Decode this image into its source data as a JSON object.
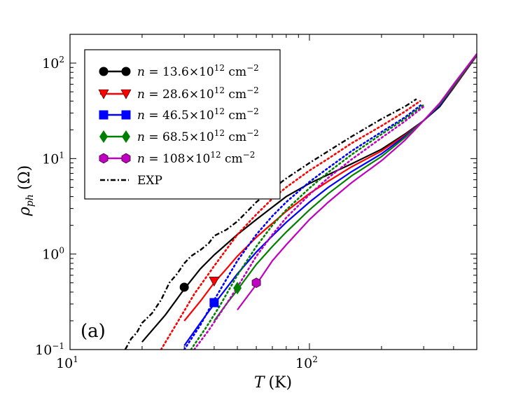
{
  "chart_data": {
    "type": "line",
    "title": "",
    "panel_label": "(a)",
    "xscale": "log",
    "yscale": "log",
    "xlim": [
      10,
      500
    ],
    "ylim": [
      0.1,
      200
    ],
    "xlabel_var": "T",
    "xlabel_unit": "(K)",
    "ylabel_var": "ρ",
    "ylabel_sub": "ph",
    "ylabel_unit": "(Ω)",
    "x_ticks": [
      {
        "value": 10,
        "base": "10",
        "exp": "1"
      },
      {
        "value": 100,
        "base": "10",
        "exp": "2"
      }
    ],
    "y_ticks": [
      {
        "value": 0.1,
        "base": "10",
        "exp": "−1"
      },
      {
        "value": 1,
        "base": "10",
        "exp": "0"
      },
      {
        "value": 10,
        "base": "10",
        "exp": "1"
      },
      {
        "value": 100,
        "base": "10",
        "exp": "2"
      }
    ],
    "legend_position": "upper-left",
    "series": [
      {
        "name": "n = 13.6×10^12 cm^-2",
        "label_main": "n = 13.6×10",
        "label_exp": "12",
        "label_unit": " cm",
        "label_unit_exp": "−2",
        "color": "#000000",
        "marker": "circle",
        "marker_point": [
          30,
          0.45
        ],
        "solid": {
          "x": [
            20,
            25,
            30,
            35,
            40,
            50,
            60,
            70,
            80,
            100,
            120,
            150,
            200,
            250,
            300,
            350,
            400,
            500
          ],
          "y": [
            0.12,
            0.23,
            0.43,
            0.7,
            0.98,
            1.6,
            2.3,
            3.1,
            4.0,
            5.5,
            6.8,
            8.8,
            12.5,
            18,
            25,
            35,
            55,
            120
          ]
        },
        "dotted": {
          "x": [],
          "y": []
        }
      },
      {
        "name": "n = 28.6×10^12 cm^-2",
        "label_main": "n = 28.6×10",
        "label_exp": "12",
        "label_unit": " cm",
        "label_unit_exp": "−2",
        "color": "#ff0000",
        "marker": "triangle-down",
        "marker_point": [
          40,
          0.52
        ],
        "solid": {
          "x": [
            30,
            35,
            40,
            45,
            50,
            60,
            70,
            80,
            100,
            120,
            150,
            200,
            250,
            300,
            350,
            400,
            500
          ],
          "y": [
            0.2,
            0.32,
            0.5,
            0.7,
            0.95,
            1.5,
            2.1,
            2.8,
            4.3,
            5.8,
            8.2,
            12,
            17.5,
            25,
            36,
            56,
            121
          ]
        },
        "dotted": {
          "x": [
            24,
            28,
            33,
            40,
            50,
            60,
            70,
            80,
            100,
            120,
            150,
            200,
            250,
            290
          ],
          "y": [
            0.1,
            0.19,
            0.38,
            0.75,
            1.6,
            2.6,
            3.8,
            5.0,
            7.5,
            10,
            14.5,
            22,
            31,
            40
          ]
        }
      },
      {
        "name": "n = 46.5×10^12 cm^-2",
        "label_main": "n = 46.5×10",
        "label_exp": "12",
        "label_unit": " cm",
        "label_unit_exp": "−2",
        "color": "#0000ff",
        "marker": "square",
        "marker_point": [
          40,
          0.31
        ],
        "solid": {
          "x": [
            30,
            35,
            40,
            45,
            50,
            60,
            70,
            80,
            100,
            120,
            150,
            200,
            250,
            300,
            350,
            400,
            500
          ],
          "y": [
            0.11,
            0.19,
            0.3,
            0.44,
            0.62,
            1.05,
            1.55,
            2.15,
            3.5,
            5.0,
            7.3,
            11.2,
            17,
            25,
            36,
            57,
            122
          ]
        },
        "dotted": {
          "x": [
            30,
            35,
            40,
            50,
            60,
            70,
            80,
            100,
            120,
            150,
            200,
            250,
            295
          ],
          "y": [
            0.1,
            0.18,
            0.33,
            0.85,
            1.6,
            2.5,
            3.5,
            5.7,
            8,
            12,
            19,
            27,
            37
          ]
        }
      },
      {
        "name": "n = 68.5×10^12 cm^-2",
        "label_main": "n = 68.5×10",
        "label_exp": "12",
        "label_unit": " cm",
        "label_unit_exp": "−2",
        "color": "#008000",
        "marker": "diamond",
        "marker_point": [
          50,
          0.44
        ],
        "solid": {
          "x": [
            40,
            45,
            50,
            60,
            70,
            80,
            100,
            120,
            150,
            200,
            250,
            300,
            350,
            400,
            500
          ],
          "y": [
            0.2,
            0.3,
            0.42,
            0.78,
            1.2,
            1.7,
            2.9,
            4.3,
            6.6,
            10.5,
            16.5,
            25,
            37,
            58,
            123
          ]
        },
        "dotted": {
          "x": [
            32,
            37,
            42,
            50,
            60,
            70,
            80,
            100,
            120,
            150,
            200,
            250,
            298
          ],
          "y": [
            0.1,
            0.17,
            0.28,
            0.6,
            1.2,
            2.0,
            2.9,
            4.9,
            7.2,
            11,
            18,
            26,
            36
          ]
        }
      },
      {
        "name": "n = 108×10^12 cm^-2",
        "label_main": "n = 108×10",
        "label_exp": "12",
        "label_unit": " cm",
        "label_unit_exp": "−2",
        "color": "#c000c0",
        "marker": "hexagon",
        "marker_point": [
          60,
          0.5
        ],
        "solid": {
          "x": [
            50,
            60,
            70,
            80,
            100,
            120,
            150,
            200,
            250,
            300,
            350,
            400,
            500
          ],
          "y": [
            0.26,
            0.48,
            0.85,
            1.25,
            2.3,
            3.5,
            5.6,
            9.5,
            15.5,
            25,
            38,
            60,
            125
          ]
        },
        "dotted": {
          "x": [
            33,
            38,
            45,
            50,
            60,
            70,
            80,
            100,
            120,
            150,
            200,
            250,
            300
          ],
          "y": [
            0.1,
            0.16,
            0.3,
            0.45,
            0.95,
            1.6,
            2.4,
            4.2,
            6.3,
            9.8,
            16.5,
            24.5,
            35
          ]
        }
      },
      {
        "name": "EXP",
        "label_main": "EXP",
        "label_exp": "",
        "label_unit": "",
        "label_unit_exp": "",
        "color": "#000000",
        "marker": "none",
        "style": "dashdot",
        "solid": {
          "x": [
            17,
            18,
            19,
            20,
            22,
            24,
            26,
            28,
            30,
            32,
            35,
            38,
            40,
            45,
            50,
            55,
            60,
            70,
            80,
            100,
            120,
            150,
            200,
            250,
            280
          ],
          "y": [
            0.1,
            0.13,
            0.15,
            0.19,
            0.24,
            0.33,
            0.5,
            0.62,
            0.8,
            0.95,
            1.1,
            1.3,
            1.55,
            1.8,
            2.2,
            2.8,
            3.5,
            4.8,
            6.2,
            9,
            12,
            17,
            26,
            35,
            42
          ]
        },
        "dotted": {
          "x": [],
          "y": []
        }
      }
    ]
  }
}
